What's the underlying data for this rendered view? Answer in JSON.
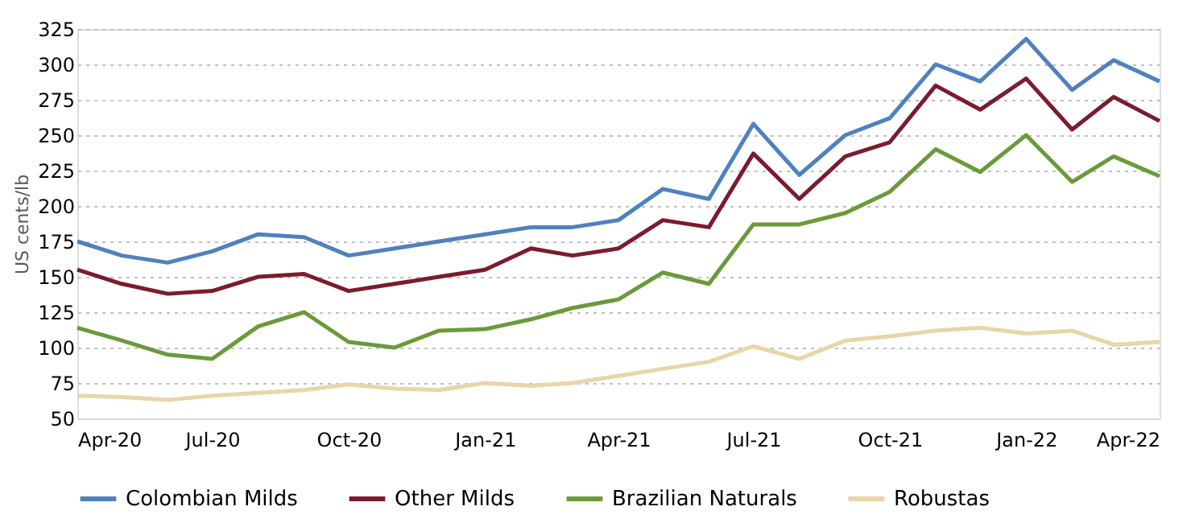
{
  "chart_data": {
    "type": "line",
    "ylabel": "US cents/lb",
    "x": [
      "2020-04-01",
      "2020-05-01",
      "2020-06-01",
      "2020-07-01",
      "2020-08-01",
      "2020-09-01",
      "2020-10-01",
      "2020-11-01",
      "2020-12-01",
      "2021-01-01",
      "2021-02-01",
      "2021-03-01",
      "2021-04-01",
      "2021-05-01",
      "2021-06-01",
      "2021-07-01",
      "2021-08-01",
      "2021-09-01",
      "2021-10-01",
      "2021-11-01",
      "2021-12-01",
      "2022-01-01",
      "2022-02-01",
      "2022-03-01",
      "2022-04-01"
    ],
    "series": [
      {
        "name": "Colombian Milds",
        "color": "#4f81bd",
        "values": [
          175,
          165,
          160,
          168,
          180,
          178,
          165,
          170,
          175,
          180,
          185,
          185,
          190,
          212,
          205,
          258,
          222,
          250,
          262,
          300,
          288,
          318,
          282,
          303,
          288
        ]
      },
      {
        "name": "Other Milds",
        "color": "#7b1c2e",
        "values": [
          155,
          145,
          138,
          140,
          150,
          152,
          140,
          145,
          150,
          155,
          170,
          165,
          170,
          190,
          185,
          237,
          205,
          235,
          245,
          285,
          268,
          290,
          254,
          277,
          260
        ]
      },
      {
        "name": "Brazilian Naturals",
        "color": "#6a9a3a",
        "values": [
          114,
          105,
          95,
          92,
          115,
          125,
          104,
          100,
          112,
          113,
          120,
          128,
          134,
          153,
          145,
          187,
          187,
          195,
          210,
          240,
          224,
          250,
          217,
          235,
          221
        ]
      },
      {
        "name": "Robustas",
        "color": "#e8d5a8",
        "values": [
          66,
          65,
          63,
          66,
          68,
          70,
          74,
          71,
          70,
          75,
          73,
          75,
          80,
          85,
          90,
          101,
          92,
          105,
          108,
          112,
          114,
          110,
          112,
          102,
          104
        ]
      }
    ],
    "ylim": [
      50,
      325
    ],
    "yticks": [
      50,
      75,
      100,
      125,
      150,
      175,
      200,
      225,
      250,
      275,
      300,
      325
    ],
    "xlim": [
      "2020-04-01",
      "2022-04-01"
    ],
    "xticks": [
      {
        "value": "2020-04-01",
        "label": "Apr-20"
      },
      {
        "value": "2020-07-01",
        "label": "Jul-20"
      },
      {
        "value": "2020-10-01",
        "label": "Oct-20"
      },
      {
        "value": "2021-01-01",
        "label": "Jan-21"
      },
      {
        "value": "2021-04-01",
        "label": "Apr-21"
      },
      {
        "value": "2021-07-01",
        "label": "Jul-21"
      },
      {
        "value": "2021-10-01",
        "label": "Oct-21"
      },
      {
        "value": "2022-01-01",
        "label": "Jan-22"
      },
      {
        "value": "2022-04-01",
        "label": "Apr-22"
      }
    ],
    "grid": "y",
    "legend": "bottom",
    "line_style": "solid",
    "marker": "none"
  }
}
